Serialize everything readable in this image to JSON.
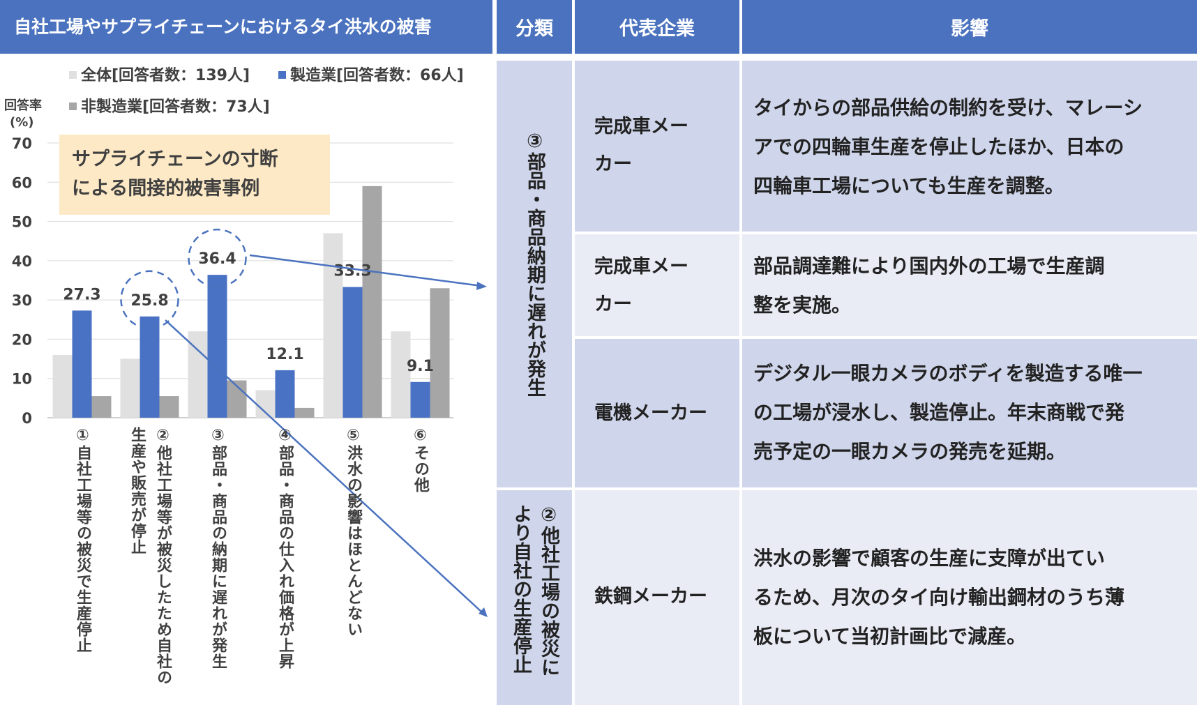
{
  "chart_title": "自社工場やサプライチェーンにおけるタイ洪水の被害",
  "callout": {
    "line1": "サプライチェーンの寸断",
    "line2": "による間接的被害事例"
  },
  "chart_data": {
    "type": "bar",
    "ylabel": "回答率",
    "yunit": "(%)",
    "ylim": [
      0,
      70
    ],
    "yticks": [
      0,
      10,
      20,
      30,
      40,
      50,
      60,
      70
    ],
    "grid": true,
    "legend_placement": "top",
    "categories": [
      "①自社工場等の被災で生産停止",
      "②他社工場等が被災したため自社の生産や販売が停止",
      "③部品・商品の納期に遅れが発生",
      "④部品・商品の仕入れ価格が上昇",
      "⑤洪水の影響はほとんどない",
      "⑥その他"
    ],
    "series": [
      {
        "name": "全体[回答者数：139人]",
        "color": "#e0e0e0",
        "values": [
          16,
          15,
          22,
          7,
          47,
          22
        ]
      },
      {
        "name": "製造業[回答者数：66人]",
        "color": "#4a72c4",
        "values": [
          27.3,
          25.8,
          36.4,
          12.1,
          33.3,
          9.1
        ]
      },
      {
        "name": "非製造業[回答者数：73人]",
        "color": "#a6a6a6",
        "values": [
          5.5,
          5.5,
          9.5,
          2.5,
          59,
          33
        ]
      }
    ],
    "data_labels": [
      "27.3",
      "25.8",
      "36.4",
      "12.1",
      "33.3",
      "9.1"
    ],
    "highlighted": [
      "25.8",
      "36.4"
    ]
  },
  "x_labels": {
    "c1": {
      "col1": "①自社工場等の被災で生産停止"
    },
    "c2": {
      "col1": "②他社工場等が被災したため自社の",
      "col2": "生産や販売が停止"
    },
    "c3": {
      "col1": "③部品・商品の納期に遅れが発生"
    },
    "c4": {
      "col1": "④部品・商品の仕入れ価格が上昇"
    },
    "c5": {
      "col1": "⑤洪水の影響はほとんどない"
    },
    "c6": {
      "col1": "⑥その他"
    }
  },
  "table": {
    "headers": {
      "category": "分類",
      "company": "代表企業",
      "impact": "影響"
    },
    "group1": {
      "label": "③部品・商品納期に遅れが発生"
    },
    "group2": {
      "label_col1": "②他社工場の被災に",
      "label_col2": "より自社の生産停止"
    },
    "rows": [
      {
        "company_l1": "完成車メー",
        "company_l2": "カー",
        "impact_l1": "タイからの部品供給の制約を受け、マレーシ",
        "impact_l2": "アでの四輪車生産を停止したほか、日本の",
        "impact_l3": "四輪車工場についても生産を調整。"
      },
      {
        "company_l1": "完成車メー",
        "company_l2": "カー",
        "impact_l1": "部品調達難により国内外の工場で生産調",
        "impact_l2": "整を実施。"
      },
      {
        "company_l1": "電機メーカー",
        "impact_l1": "デジタル一眼カメラのボディを製造する唯一",
        "impact_l2": "の工場が浸水し、製造停止。年末商戦で発",
        "impact_l3": "売予定の一眼カメラの発売を延期。"
      },
      {
        "company_l1": "鉄鋼メーカー",
        "impact_l1": "洪水の影響で顧客の生産に支障が出てい",
        "impact_l2": "るため、月次のタイ向け輸出鋼材のうち薄",
        "impact_l3": "板について当初計画比で減産。"
      }
    ]
  }
}
